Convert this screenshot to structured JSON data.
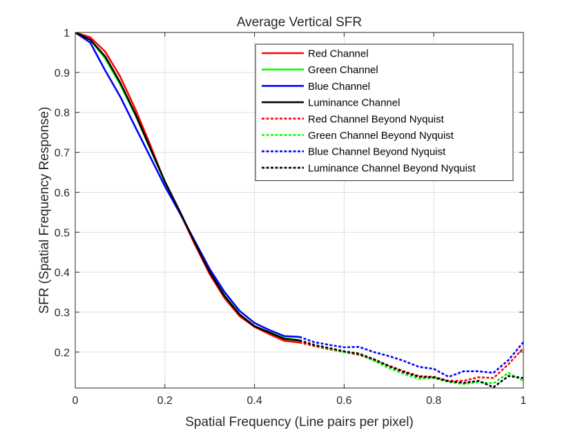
{
  "chart_data": {
    "type": "line",
    "title": "Average Vertical SFR",
    "xlabel": "Spatial Frequency (Line pairs per pixel)",
    "ylabel": "SFR (Spatial Frequency Response)",
    "xlim": [
      0,
      1
    ],
    "ylim": [
      0.11,
      1
    ],
    "xticks": [
      0,
      0.2,
      0.4,
      0.6,
      0.8,
      1
    ],
    "xtick_labels": [
      "0",
      "0.2",
      "0.4",
      "0.6",
      "0.8",
      "1"
    ],
    "yticks": [
      0.2,
      0.3,
      0.4,
      0.5,
      0.6,
      0.7,
      0.8,
      0.9,
      1
    ],
    "ytick_labels": [
      "0.2",
      "0.3",
      "0.4",
      "0.5",
      "0.6",
      "0.7",
      "0.8",
      "0.9",
      "1"
    ],
    "grid": true,
    "legend_position": "top-right",
    "series": [
      {
        "name": "Red Channel",
        "color": "#ff0000",
        "style": "solid",
        "x": [
          0,
          0.0333,
          0.0667,
          0.1,
          0.1333,
          0.1667,
          0.2,
          0.2333,
          0.2667,
          0.3,
          0.3333,
          0.3667,
          0.4,
          0.4333,
          0.4667,
          0.5
        ],
        "y": [
          1.0,
          0.988,
          0.952,
          0.89,
          0.81,
          0.72,
          0.625,
          0.55,
          0.47,
          0.395,
          0.335,
          0.29,
          0.263,
          0.245,
          0.228,
          0.224
        ]
      },
      {
        "name": "Green Channel",
        "color": "#00ff00",
        "style": "solid",
        "x": [
          0,
          0.0333,
          0.0667,
          0.1,
          0.1333,
          0.1667,
          0.2,
          0.2333,
          0.2667,
          0.3,
          0.3333,
          0.3667,
          0.4,
          0.4333,
          0.4667,
          0.5
        ],
        "y": [
          1.0,
          0.982,
          0.935,
          0.87,
          0.795,
          0.71,
          0.625,
          0.552,
          0.475,
          0.402,
          0.342,
          0.295,
          0.265,
          0.25,
          0.235,
          0.23
        ]
      },
      {
        "name": "Blue Channel",
        "color": "#0000ff",
        "style": "solid",
        "x": [
          0,
          0.0333,
          0.0667,
          0.1,
          0.1333,
          0.1667,
          0.2,
          0.2333,
          0.2667,
          0.3,
          0.3333,
          0.3667,
          0.4,
          0.4333,
          0.4667,
          0.5
        ],
        "y": [
          1.0,
          0.975,
          0.905,
          0.84,
          0.765,
          0.69,
          0.615,
          0.548,
          0.478,
          0.408,
          0.35,
          0.303,
          0.273,
          0.255,
          0.24,
          0.238
        ]
      },
      {
        "name": "Luminance Channel",
        "color": "#000000",
        "style": "solid",
        "x": [
          0,
          0.0333,
          0.0667,
          0.1,
          0.1333,
          0.1667,
          0.2,
          0.2333,
          0.2667,
          0.3,
          0.3333,
          0.3667,
          0.4,
          0.4333,
          0.4667,
          0.5
        ],
        "y": [
          1.0,
          0.982,
          0.94,
          0.875,
          0.798,
          0.712,
          0.627,
          0.552,
          0.474,
          0.4,
          0.34,
          0.294,
          0.265,
          0.249,
          0.233,
          0.229
        ]
      },
      {
        "name": "Red Channel Beyond Nyquist",
        "color": "#ff0000",
        "style": "dotted",
        "x": [
          0.5,
          0.5333,
          0.5667,
          0.6,
          0.6333,
          0.6667,
          0.7,
          0.7333,
          0.7667,
          0.8,
          0.8333,
          0.8667,
          0.9,
          0.9333,
          0.9667,
          1.0
        ],
        "y": [
          0.224,
          0.215,
          0.207,
          0.2,
          0.193,
          0.18,
          0.166,
          0.152,
          0.14,
          0.138,
          0.128,
          0.128,
          0.137,
          0.135,
          0.17,
          0.21
        ]
      },
      {
        "name": "Green Channel Beyond Nyquist",
        "color": "#00ff00",
        "style": "dotted",
        "x": [
          0.5,
          0.5333,
          0.5667,
          0.6,
          0.6333,
          0.6667,
          0.7,
          0.7333,
          0.7667,
          0.8,
          0.8333,
          0.8667,
          0.9,
          0.9333,
          0.9667,
          1.0
        ],
        "y": [
          0.23,
          0.218,
          0.208,
          0.2,
          0.195,
          0.178,
          0.16,
          0.145,
          0.133,
          0.135,
          0.125,
          0.12,
          0.125,
          0.122,
          0.148,
          0.128
        ]
      },
      {
        "name": "Blue Channel Beyond Nyquist",
        "color": "#0000ff",
        "style": "dotted",
        "x": [
          0.5,
          0.5333,
          0.5667,
          0.6,
          0.6333,
          0.6667,
          0.7,
          0.7333,
          0.7667,
          0.8,
          0.8333,
          0.8667,
          0.9,
          0.9333,
          0.9667,
          1.0
        ],
        "y": [
          0.238,
          0.225,
          0.218,
          0.212,
          0.213,
          0.2,
          0.19,
          0.178,
          0.163,
          0.158,
          0.138,
          0.152,
          0.152,
          0.148,
          0.18,
          0.225
        ]
      },
      {
        "name": "Luminance Channel Beyond Nyquist",
        "color": "#000000",
        "style": "dotted",
        "x": [
          0.5,
          0.5333,
          0.5667,
          0.6,
          0.6333,
          0.6667,
          0.7,
          0.7333,
          0.7667,
          0.8,
          0.8333,
          0.8667,
          0.9,
          0.9333,
          0.9667,
          1.0
        ],
        "y": [
          0.229,
          0.218,
          0.21,
          0.202,
          0.196,
          0.182,
          0.165,
          0.15,
          0.138,
          0.137,
          0.127,
          0.123,
          0.128,
          0.112,
          0.14,
          0.135
        ]
      }
    ]
  }
}
